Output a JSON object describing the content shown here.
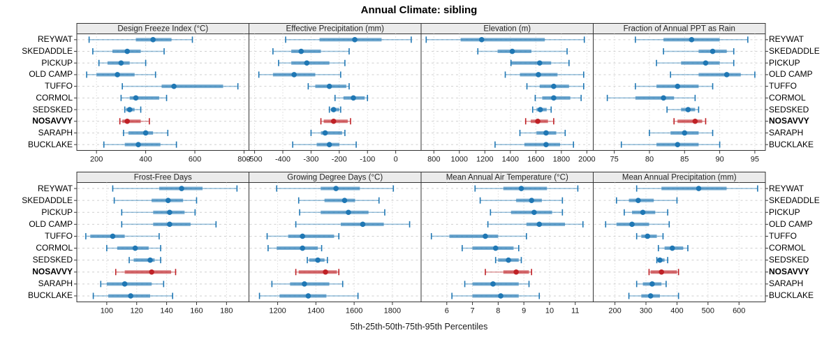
{
  "title": "Annual Climate: sibling",
  "caption": "5th-25th-50th-75th-95th Percentiles",
  "sites": [
    "REYWAT",
    "SKEDADDLE",
    "PICKUP",
    "OLD CAMP",
    "TUFFO",
    "CORMOL",
    "SEDSKED",
    "NOSAVVY",
    "SARAPH",
    "BUCKLAKE"
  ],
  "highlight_site": "NOSAVVY",
  "colors": {
    "series_blue": "#1f77b4",
    "highlight_red": "#bf2126",
    "strip_bg": "#ebebeb",
    "panel_border": "#333333",
    "grid": "#c9c9c9",
    "row_grid": "#cfcfcf",
    "tick_text": "#1a1a1a"
  },
  "chart_data": [
    {
      "type": "dotplot-interval",
      "title": "Design Freeze Index (°C)",
      "percentiles": [
        5,
        25,
        50,
        75,
        95
      ],
      "xlim": [
        120,
        820
      ],
      "ticks": [
        200,
        400,
        600,
        800
      ],
      "rows": [
        [
          170,
          360,
          430,
          505,
          590
        ],
        [
          185,
          265,
          325,
          380,
          475
        ],
        [
          210,
          245,
          300,
          335,
          400
        ],
        [
          160,
          200,
          285,
          355,
          440
        ],
        [
          305,
          465,
          515,
          715,
          775
        ],
        [
          300,
          335,
          360,
          455,
          485
        ],
        [
          315,
          320,
          335,
          355,
          380
        ],
        [
          295,
          305,
          325,
          380,
          415
        ],
        [
          310,
          330,
          400,
          430,
          490
        ],
        [
          230,
          315,
          370,
          460,
          525
        ]
      ]
    },
    {
      "type": "dotplot-interval",
      "title": "Effective Precipitation (mm)",
      "percentiles": [
        5,
        25,
        50,
        75,
        95
      ],
      "xlim": [
        -520,
        90
      ],
      "ticks": [
        -500,
        -400,
        -300,
        -200,
        -100,
        0
      ],
      "rows": [
        [
          -390,
          -270,
          -145,
          -50,
          55
        ],
        [
          -435,
          -370,
          -335,
          -265,
          -165
        ],
        [
          -415,
          -370,
          -315,
          -235,
          -180
        ],
        [
          -485,
          -435,
          -360,
          -285,
          -195
        ],
        [
          -310,
          -285,
          -235,
          -175,
          -165
        ],
        [
          -215,
          -185,
          -150,
          -110,
          -100
        ],
        [
          -235,
          -230,
          -220,
          -200,
          -195
        ],
        [
          -265,
          -255,
          -220,
          -170,
          -160
        ],
        [
          -300,
          -265,
          -250,
          -190,
          -180
        ],
        [
          -365,
          -280,
          -235,
          -200,
          -140
        ]
      ]
    },
    {
      "type": "dotplot-interval",
      "title": "Elevation (m)",
      "percentiles": [
        5,
        25,
        50,
        75,
        95
      ],
      "xlim": [
        700,
        2050
      ],
      "ticks": [
        800,
        1000,
        1200,
        1400,
        1600,
        1800,
        2000
      ],
      "rows": [
        [
          740,
          1010,
          1175,
          1670,
          1980
        ],
        [
          1145,
          1300,
          1415,
          1565,
          1845
        ],
        [
          1405,
          1410,
          1630,
          1720,
          1860
        ],
        [
          1360,
          1475,
          1620,
          1770,
          1975
        ],
        [
          1530,
          1630,
          1740,
          1860,
          1975
        ],
        [
          1595,
          1650,
          1740,
          1870,
          1955
        ],
        [
          1575,
          1605,
          1635,
          1685,
          1720
        ],
        [
          1520,
          1560,
          1615,
          1695,
          1740
        ],
        [
          1475,
          1605,
          1680,
          1760,
          1830
        ],
        [
          1280,
          1510,
          1680,
          1790,
          1895
        ]
      ]
    },
    {
      "type": "dotplot-interval",
      "title": "Fraction of Annual PPT as Rain",
      "percentiles": [
        5,
        25,
        50,
        75,
        95
      ],
      "xlim": [
        72,
        96.5
      ],
      "ticks": [
        75,
        80,
        85,
        90,
        95
      ],
      "rows": [
        [
          78,
          82,
          86,
          90,
          94
        ],
        [
          82,
          87,
          89,
          91,
          92
        ],
        [
          81,
          84.5,
          88,
          90,
          92
        ],
        [
          83,
          87,
          91,
          93,
          95
        ],
        [
          78,
          81,
          84,
          87,
          89
        ],
        [
          74,
          78,
          82,
          83.5,
          86.5
        ],
        [
          82.5,
          84.5,
          85.5,
          86.5,
          87
        ],
        [
          83.5,
          84,
          86.5,
          87.5,
          88
        ],
        [
          80,
          83,
          85,
          87,
          89
        ],
        [
          76,
          81,
          84,
          87,
          90
        ]
      ]
    },
    {
      "type": "dotplot-interval",
      "title": "Frost-Free Days",
      "percentiles": [
        5,
        25,
        50,
        75,
        95
      ],
      "xlim": [
        80,
        195
      ],
      "ticks": [
        100,
        120,
        140,
        160,
        180
      ],
      "rows": [
        [
          104,
          135,
          150,
          164,
          187
        ],
        [
          105,
          130,
          141,
          151,
          160
        ],
        [
          110,
          131,
          142,
          152,
          159
        ],
        [
          110,
          131,
          142,
          156,
          173
        ],
        [
          86,
          89,
          104,
          112,
          135
        ],
        [
          100,
          107,
          119,
          128,
          136
        ],
        [
          115,
          118,
          129,
          132,
          136
        ],
        [
          106,
          112,
          130,
          143,
          146
        ],
        [
          96,
          100,
          112,
          130,
          138
        ],
        [
          91,
          101,
          116,
          129,
          144
        ]
      ]
    },
    {
      "type": "dotplot-interval",
      "title": "Growing Degree Days (°C)",
      "percentiles": [
        5,
        25,
        50,
        75,
        95
      ],
      "xlim": [
        1050,
        1950
      ],
      "ticks": [
        1200,
        1400,
        1600,
        1800
      ],
      "rows": [
        [
          1195,
          1425,
          1505,
          1630,
          1805
        ],
        [
          1310,
          1445,
          1550,
          1605,
          1730
        ],
        [
          1315,
          1425,
          1570,
          1675,
          1760
        ],
        [
          1295,
          1530,
          1645,
          1755,
          1890
        ],
        [
          1145,
          1255,
          1330,
          1495,
          1520
        ],
        [
          1150,
          1195,
          1330,
          1410,
          1430
        ],
        [
          1355,
          1365,
          1410,
          1445,
          1460
        ],
        [
          1295,
          1310,
          1450,
          1510,
          1520
        ],
        [
          1170,
          1265,
          1340,
          1470,
          1540
        ],
        [
          1105,
          1210,
          1360,
          1455,
          1620
        ]
      ]
    },
    {
      "type": "dotplot-interval",
      "title": "Mean Annual Air Temperature (°C)",
      "percentiles": [
        5,
        25,
        50,
        75,
        95
      ],
      "xlim": [
        5,
        11.7
      ],
      "ticks": [
        6,
        7,
        8,
        9,
        10,
        11
      ],
      "rows": [
        [
          7.1,
          8.2,
          8.9,
          9.9,
          11.1
        ],
        [
          7.3,
          8.7,
          9.3,
          9.7,
          10.5
        ],
        [
          7.7,
          8.5,
          9.4,
          10.1,
          10.5
        ],
        [
          7.6,
          9.1,
          9.6,
          10.6,
          11.3
        ],
        [
          5.4,
          6.1,
          7.5,
          8.0,
          9.1
        ],
        [
          6.6,
          7.0,
          7.9,
          8.6,
          8.8
        ],
        [
          7.9,
          8.0,
          8.4,
          8.8,
          8.9
        ],
        [
          7.5,
          8.2,
          8.7,
          9.2,
          9.3
        ],
        [
          6.7,
          7.0,
          7.8,
          8.8,
          9.2
        ],
        [
          6.2,
          7.0,
          8.1,
          8.8,
          9.6
        ]
      ]
    },
    {
      "type": "dotplot-interval",
      "title": "Mean Annual Precipitation (mm)",
      "percentiles": [
        5,
        25,
        50,
        75,
        95
      ],
      "xlim": [
        130,
        685
      ],
      "ticks": [
        200,
        300,
        400,
        500,
        600
      ],
      "rows": [
        [
          270,
          350,
          470,
          560,
          660
        ],
        [
          205,
          245,
          275,
          325,
          400
        ],
        [
          230,
          255,
          290,
          330,
          370
        ],
        [
          170,
          205,
          255,
          310,
          375
        ],
        [
          270,
          285,
          305,
          335,
          355
        ],
        [
          340,
          360,
          385,
          420,
          435
        ],
        [
          335,
          337,
          345,
          360,
          370
        ],
        [
          310,
          315,
          350,
          400,
          405
        ],
        [
          270,
          290,
          320,
          350,
          365
        ],
        [
          245,
          285,
          315,
          345,
          405
        ]
      ]
    }
  ]
}
